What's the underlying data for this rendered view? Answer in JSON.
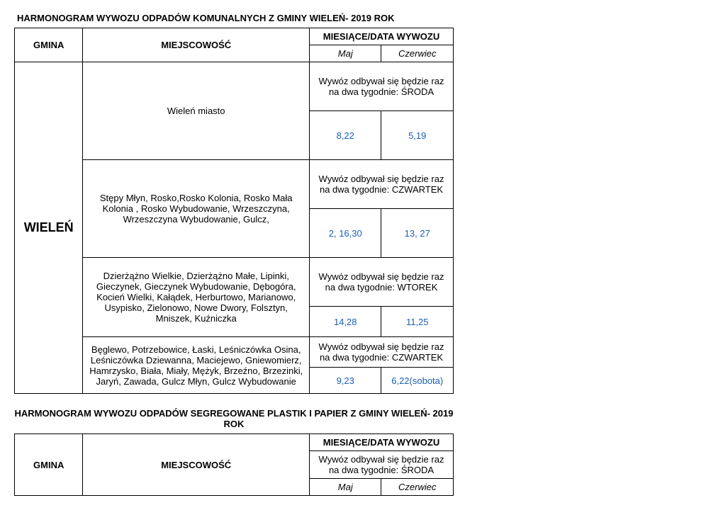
{
  "title1": "HARMONOGRAM WYWOZU ODPADÓW KOMUNALNYCH Z GMINY WIELEŃ- 2019 ROK",
  "columns": {
    "gmina": "GMINA",
    "miejscowosc": "MIEJSCOWOŚĆ",
    "miesiace": "MIESIĄCE/DATA WYWOZU",
    "maj": "Maj",
    "czerwiec": "Czerwiec"
  },
  "gmina_name": "WIELEŃ",
  "rows": [
    {
      "miejsc": "Wieleń miasto",
      "note": "Wywóz odbywał się będzie raz na dwa tygodnie: ŚRODA",
      "maj": "8,22",
      "czer": "5,19"
    },
    {
      "miejsc": "Stępy Młyn, Rosko,Rosko Kolonia, Rosko Mała Kolonia , Rosko Wybudowanie, Wrzeszczyna, Wrzeszczyna Wybudowanie, Gulcz,",
      "note": "Wywóz odbywał się będzie raz na dwa tygodnie: CZWARTEK",
      "maj": "2, 16,30",
      "czer": "13, 27"
    },
    {
      "miejsc": "Dzierżążno Wielkie, Dzierżążno Małe, Lipinki, Gieczynek, Gieczynek Wybudowanie, Dębogóra, Kocień Wielki, Kałądek, Herburtowo, Marianowo, Usypisko, Zielonowo, Nowe Dwory, Folsztyn, Mniszek, Kuźniczka",
      "note": "Wywóz odbywał się będzie raz na dwa tygodnie: WTOREK",
      "maj": "14,28",
      "czer": "11,25"
    },
    {
      "miejsc": "Bęglewo, Potrzebowice, Łaski, Leśniczówka Osina, Leśniczówka Dziewanna, Maciejewo, Gniewomierz, Hamrzysko, Biała, Miały, Mężyk, Brzeźno, Brzezinki, Jaryń, Zawada, Gulcz Młyn, Gulcz Wybudowanie",
      "note": "Wywóz odbywał się będzie raz na dwa tygodnie: CZWARTEK",
      "maj": "9,23",
      "czer": "6,22(sobota)"
    }
  ],
  "title2": "HARMONOGRAM WYWOZU ODPADÓW SEGREGOWANE PLASTIK I PAPIER Z GMINY WIELEŃ- 2019 ROK",
  "table2_note": "Wywóz odbywał się będzie raz na dwa tygodnie: ŚRODA"
}
